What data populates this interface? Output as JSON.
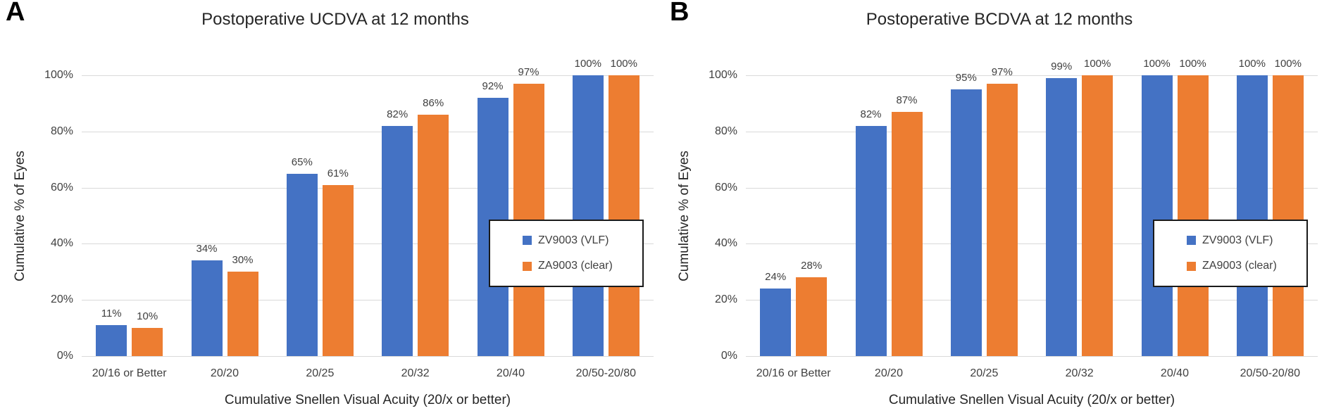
{
  "colors": {
    "series_blue": "#4472C4",
    "series_orange": "#ED7D31",
    "gridline": "#D9D9D9",
    "axis_text": "#404040",
    "title_text": "#262626",
    "legend_border": "#1A1A1A",
    "background": "#FFFFFF"
  },
  "chart_data": [
    {
      "type": "bar",
      "panel_letter": "A",
      "title": "Postoperative UCDVA at 12 months",
      "categories": [
        "20/16 or Better",
        "20/20",
        "20/25",
        "20/32",
        "20/40",
        "20/50-20/80"
      ],
      "series": [
        {
          "name": "ZV9003 (VLF)",
          "color": "#4472C4",
          "values": [
            11,
            34,
            65,
            82,
            92,
            100
          ]
        },
        {
          "name": "ZA9003 (clear)",
          "color": "#ED7D31",
          "values": [
            10,
            30,
            61,
            86,
            97,
            100
          ]
        }
      ],
      "data_label_format": "{v}%",
      "xlabel": "Cumulative Snellen Visual Acuity (20/x or better)",
      "ylabel": "Cumulative % of Eyes",
      "ylim": [
        0,
        100
      ],
      "yticks": [
        "0%",
        "20%",
        "40%",
        "60%",
        "80%",
        "100%"
      ],
      "grid": true,
      "legend_position": "inside-right"
    },
    {
      "type": "bar",
      "panel_letter": "B",
      "title": "Postoperative BCDVA at 12 months",
      "categories": [
        "20/16 or Better",
        "20/20",
        "20/25",
        "20/32",
        "20/40",
        "20/50-20/80"
      ],
      "series": [
        {
          "name": "ZV9003 (VLF)",
          "color": "#4472C4",
          "values": [
            24,
            82,
            95,
            99,
            100,
            100
          ]
        },
        {
          "name": "ZA9003 (clear)",
          "color": "#ED7D31",
          "values": [
            28,
            87,
            97,
            100,
            100,
            100
          ]
        }
      ],
      "data_label_format": "{v}%",
      "xlabel": "Cumulative Snellen Visual Acuity (20/x or better)",
      "ylabel": "Cumulative % of Eyes",
      "ylim": [
        0,
        100
      ],
      "yticks": [
        "0%",
        "20%",
        "40%",
        "60%",
        "80%",
        "100%"
      ],
      "grid": true,
      "legend_position": "inside-right"
    }
  ]
}
